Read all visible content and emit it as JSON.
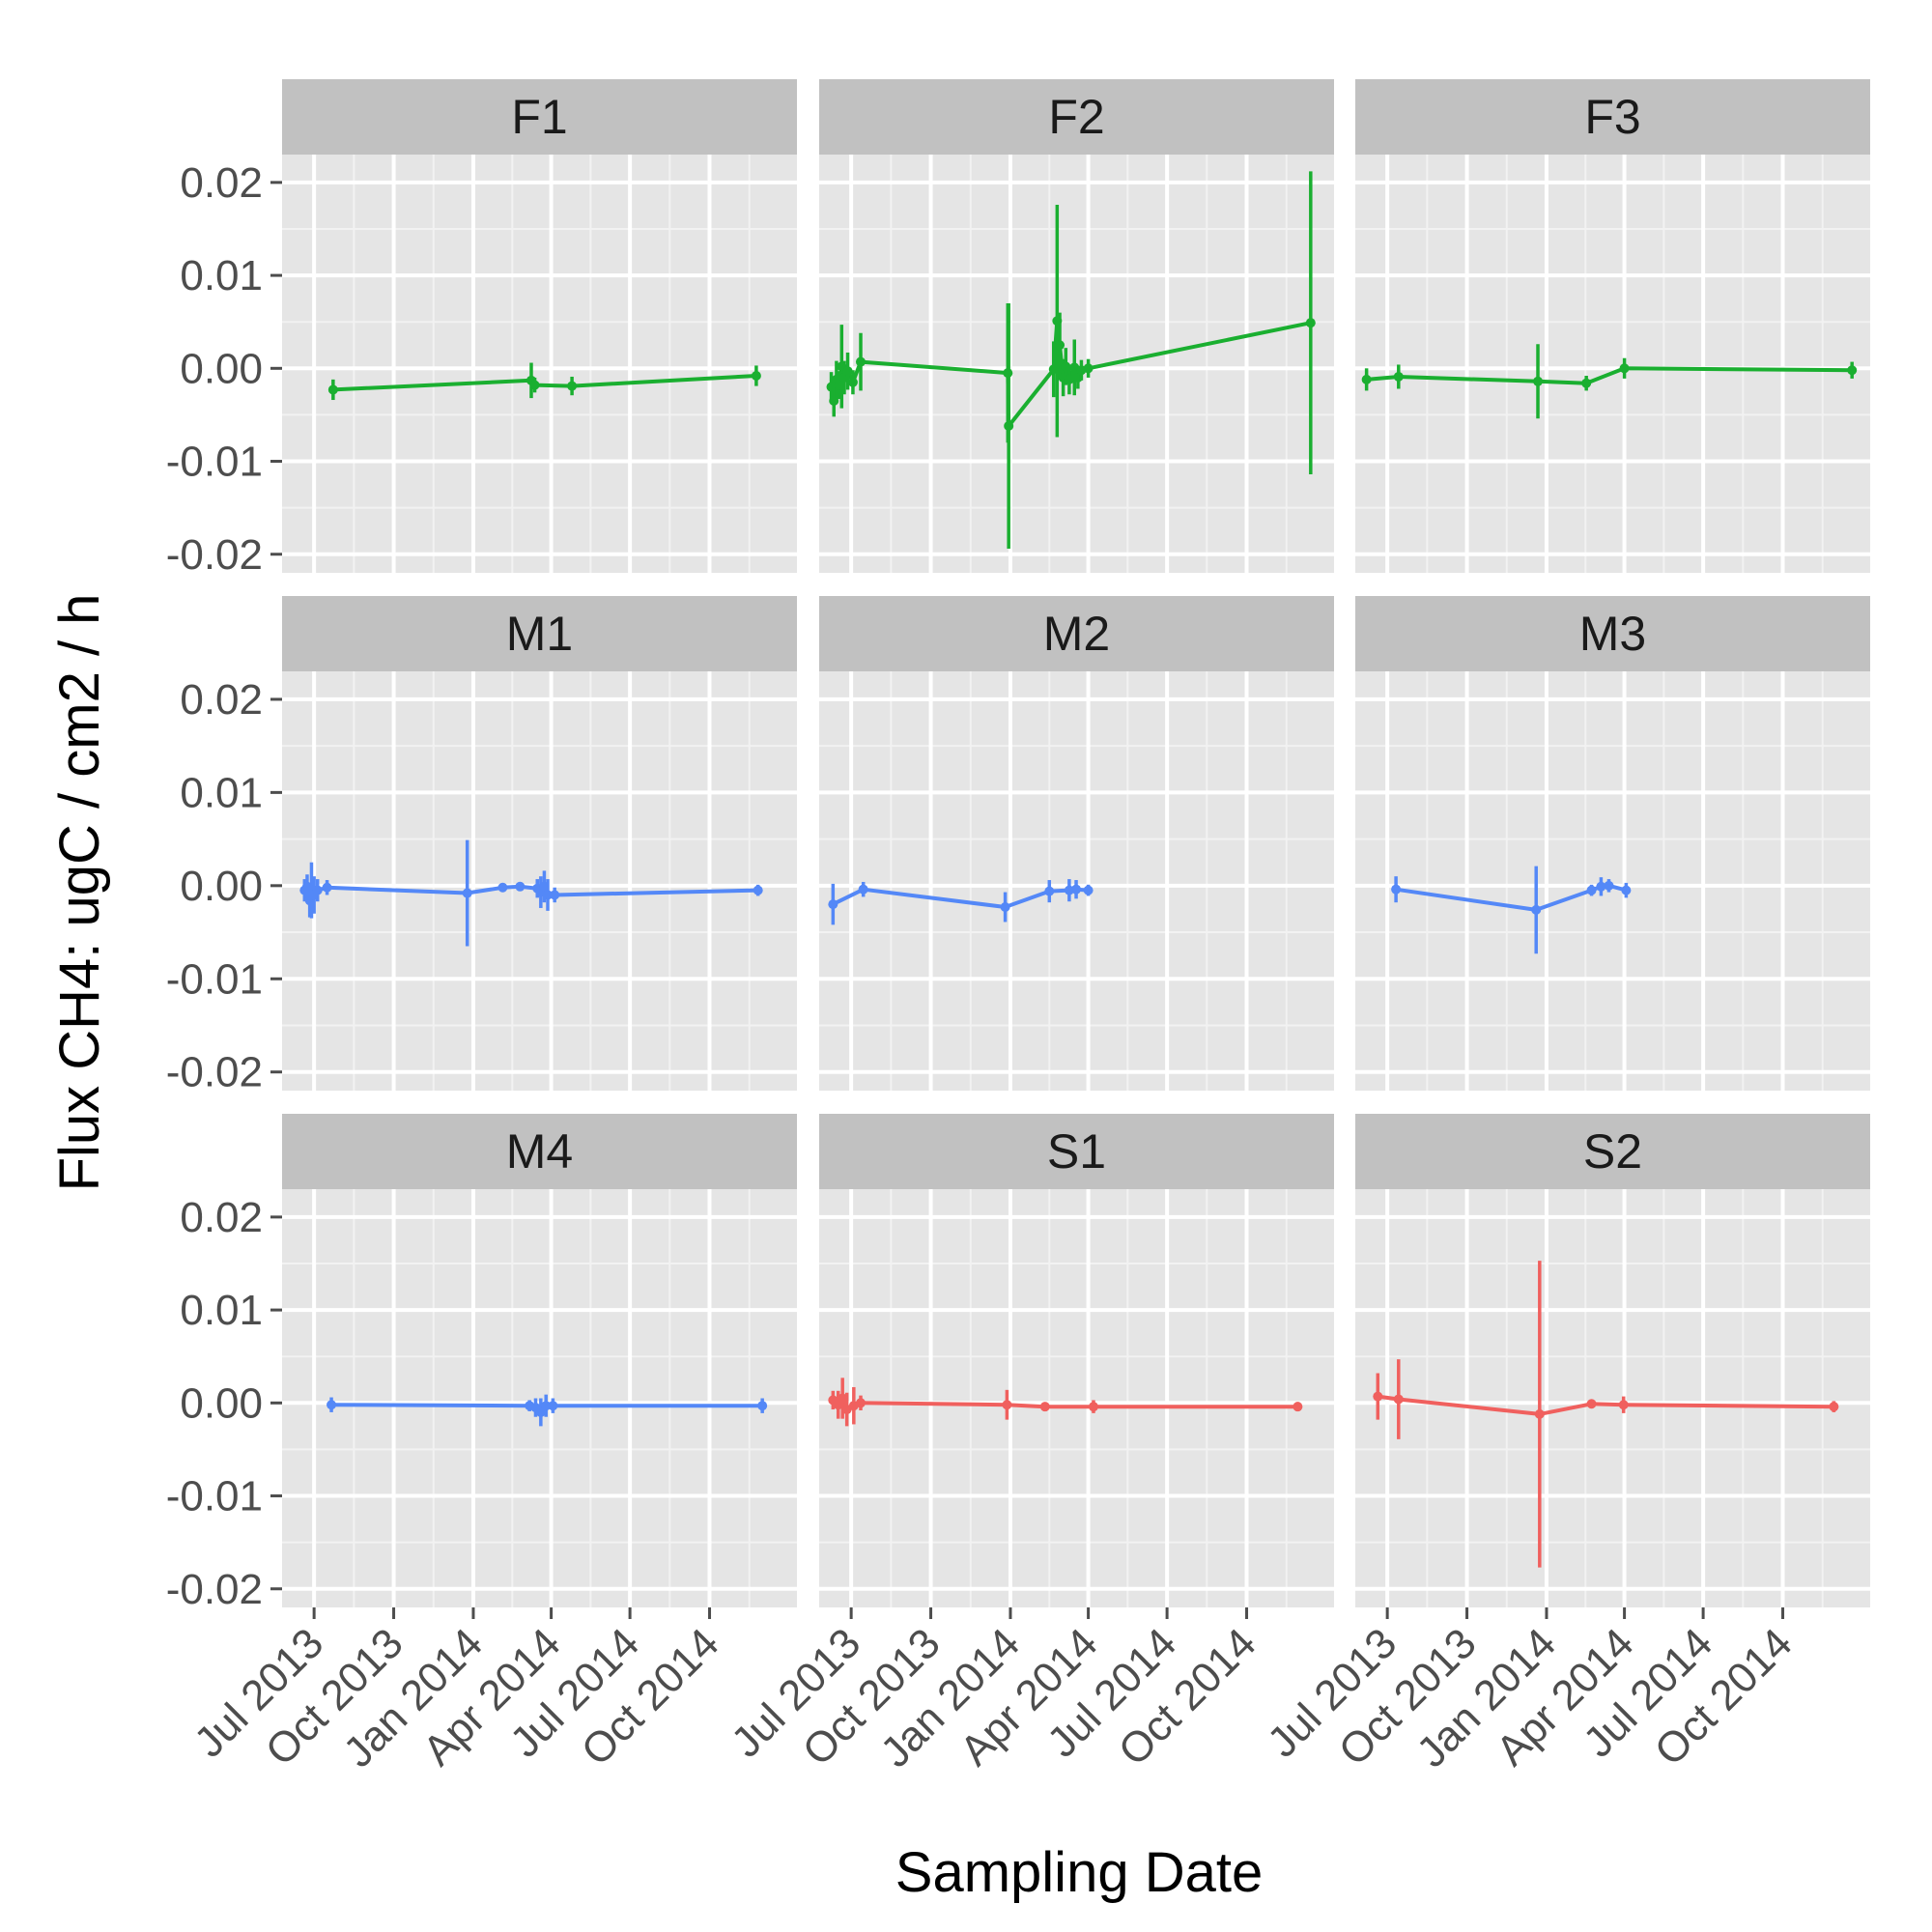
{
  "chart_data": {
    "type": "line",
    "facet_layout": {
      "columns": 3,
      "rows": 3
    },
    "xlabel": "Sampling Date",
    "ylabel": "Flux CH4: ugC / cm2 / h",
    "ylim": [
      -0.022,
      0.023
    ],
    "yticks": [
      -0.02,
      -0.01,
      0.0,
      0.01,
      0.02
    ],
    "ytick_labels": [
      "-0.02",
      "-0.01",
      "0.00",
      "0.01",
      "0.02"
    ],
    "xlim": [
      "2013-05-25",
      "2015-01-10"
    ],
    "xticks": [
      "2013-07-01",
      "2013-10-01",
      "2014-01-01",
      "2014-04-01",
      "2014-07-01",
      "2014-10-01"
    ],
    "xtick_labels": [
      "Jul 2013",
      "Oct 2013",
      "Jan 2014",
      "Apr 2014",
      "Jul 2014",
      "Oct 2014"
    ],
    "grid": true,
    "colors": {
      "F": "#1aaf30",
      "M": "#5488f7",
      "S": "#f0605e"
    },
    "panels": [
      {
        "name": "F1",
        "group": "F",
        "points": [
          {
            "x": "2013-07-23",
            "y": -0.0023,
            "err": 0.0011
          },
          {
            "x": "2014-03-09",
            "y": -0.0013,
            "err": 0.0019
          },
          {
            "x": "2014-03-13",
            "y": -0.0018,
            "err": 0.0008
          },
          {
            "x": "2014-04-25",
            "y": -0.0019,
            "err": 0.001
          },
          {
            "x": "2014-11-24",
            "y": -0.0008,
            "err": 0.0011
          }
        ]
      },
      {
        "name": "F2",
        "group": "F",
        "points": [
          {
            "x": "2013-06-08",
            "y": -0.002,
            "err": 0.0016
          },
          {
            "x": "2013-06-11",
            "y": -0.0035,
            "err": 0.0017
          },
          {
            "x": "2013-06-14",
            "y": -0.0012,
            "err": 0.002
          },
          {
            "x": "2013-06-17",
            "y": -0.0018,
            "err": 0.0015
          },
          {
            "x": "2013-06-20",
            "y": 0.0002,
            "err": 0.0045
          },
          {
            "x": "2013-06-23",
            "y": -0.001,
            "err": 0.0018
          },
          {
            "x": "2013-06-27",
            "y": -0.0003,
            "err": 0.002
          },
          {
            "x": "2013-07-03",
            "y": -0.0015,
            "err": 0.0013
          },
          {
            "x": "2013-07-12",
            "y": 0.0007,
            "err": 0.0031
          },
          {
            "x": "2013-12-29",
            "y": -0.0005,
            "err": 0.0075
          },
          {
            "x": "2013-12-30",
            "y": -0.0062,
            "err": 0.0132
          },
          {
            "x": "2014-02-20",
            "y": -0.0001,
            "err": 0.003
          },
          {
            "x": "2014-02-24",
            "y": 0.0051,
            "err": 0.0125
          },
          {
            "x": "2014-02-27",
            "y": 0.0025,
            "err": 0.0035
          },
          {
            "x": "2014-03-03",
            "y": -0.001,
            "err": 0.002
          },
          {
            "x": "2014-03-06",
            "y": 0.0002,
            "err": 0.002
          },
          {
            "x": "2014-03-10",
            "y": -0.0012,
            "err": 0.0016
          },
          {
            "x": "2014-03-16",
            "y": 0.0001,
            "err": 0.003
          },
          {
            "x": "2014-03-20",
            "y": -0.001,
            "err": 0.0012
          },
          {
            "x": "2014-03-24",
            "y": -0.0002,
            "err": 0.0011
          },
          {
            "x": "2014-04-01",
            "y": 0.0,
            "err": 0.001
          },
          {
            "x": "2014-12-14",
            "y": 0.0049,
            "err": 0.0163
          }
        ]
      },
      {
        "name": "F3",
        "group": "F",
        "points": [
          {
            "x": "2013-06-07",
            "y": -0.0012,
            "err": 0.0012
          },
          {
            "x": "2013-07-14",
            "y": -0.0009,
            "err": 0.0013
          },
          {
            "x": "2013-12-22",
            "y": -0.0014,
            "err": 0.004
          },
          {
            "x": "2014-02-16",
            "y": -0.0016,
            "err": 0.0008
          },
          {
            "x": "2014-04-01",
            "y": 0.0,
            "err": 0.0011
          },
          {
            "x": "2014-12-20",
            "y": -0.0002,
            "err": 0.0009
          }
        ]
      },
      {
        "name": "M1",
        "group": "M",
        "points": [
          {
            "x": "2013-06-20",
            "y": -0.0005,
            "err": 0.0012
          },
          {
            "x": "2013-06-23",
            "y": -0.0001,
            "err": 0.0013
          },
          {
            "x": "2013-06-26",
            "y": -0.0016,
            "err": 0.0018
          },
          {
            "x": "2013-06-28",
            "y": -0.0005,
            "err": 0.003
          },
          {
            "x": "2013-07-01",
            "y": -0.001,
            "err": 0.002
          },
          {
            "x": "2013-07-05",
            "y": -0.0005,
            "err": 0.0012
          },
          {
            "x": "2013-07-16",
            "y": -0.0002,
            "err": 0.0008
          },
          {
            "x": "2013-12-25",
            "y": -0.0008,
            "err": 0.0057
          },
          {
            "x": "2014-02-04",
            "y": -0.0002,
            "err": 0.0004
          },
          {
            "x": "2014-02-24",
            "y": -0.0001,
            "err": 0.0004
          },
          {
            "x": "2014-03-16",
            "y": -0.0003,
            "err": 0.001
          },
          {
            "x": "2014-03-20",
            "y": -0.0007,
            "err": 0.0017
          },
          {
            "x": "2014-03-24",
            "y": -0.0001,
            "err": 0.0017
          },
          {
            "x": "2014-03-28",
            "y": -0.001,
            "err": 0.0017
          },
          {
            "x": "2014-04-05",
            "y": -0.001,
            "err": 0.0008
          },
          {
            "x": "2014-11-26",
            "y": -0.0005,
            "err": 0.0006
          }
        ]
      },
      {
        "name": "M2",
        "group": "M",
        "points": [
          {
            "x": "2013-06-10",
            "y": -0.002,
            "err": 0.0022
          },
          {
            "x": "2013-07-15",
            "y": -0.0004,
            "err": 0.0008
          },
          {
            "x": "2013-12-26",
            "y": -0.0023,
            "err": 0.0016
          },
          {
            "x": "2014-02-15",
            "y": -0.0006,
            "err": 0.0012
          },
          {
            "x": "2014-03-10",
            "y": -0.0005,
            "err": 0.0012
          },
          {
            "x": "2014-03-18",
            "y": -0.0004,
            "err": 0.001
          },
          {
            "x": "2014-04-01",
            "y": -0.0005,
            "err": 0.0006
          }
        ]
      },
      {
        "name": "M3",
        "group": "M",
        "points": [
          {
            "x": "2013-07-11",
            "y": -0.0004,
            "err": 0.0014
          },
          {
            "x": "2013-12-20",
            "y": -0.0026,
            "err": 0.0047
          },
          {
            "x": "2014-02-22",
            "y": -0.0005,
            "err": 0.0006
          },
          {
            "x": "2014-03-05",
            "y": -0.0001,
            "err": 0.001
          },
          {
            "x": "2014-03-14",
            "y": 0.0,
            "err": 0.0007
          },
          {
            "x": "2014-04-03",
            "y": -0.0005,
            "err": 0.0008
          }
        ]
      },
      {
        "name": "M4",
        "group": "M",
        "points": [
          {
            "x": "2013-07-21",
            "y": -0.0002,
            "err": 0.0008
          },
          {
            "x": "2014-03-07",
            "y": -0.0003,
            "err": 0.0006
          },
          {
            "x": "2014-03-14",
            "y": -0.0005,
            "err": 0.001
          },
          {
            "x": "2014-03-20",
            "y": -0.001,
            "err": 0.0015
          },
          {
            "x": "2014-03-26",
            "y": -0.0003,
            "err": 0.0012
          },
          {
            "x": "2014-04-03",
            "y": -0.0003,
            "err": 0.0008
          },
          {
            "x": "2014-12-01",
            "y": -0.0003,
            "err": 0.0008
          }
        ]
      },
      {
        "name": "S1",
        "group": "S",
        "points": [
          {
            "x": "2013-06-10",
            "y": 0.0003,
            "err": 0.001
          },
          {
            "x": "2013-06-16",
            "y": -0.0002,
            "err": 0.0015
          },
          {
            "x": "2013-06-21",
            "y": 0.0005,
            "err": 0.0022
          },
          {
            "x": "2013-06-26",
            "y": -0.0007,
            "err": 0.0018
          },
          {
            "x": "2013-07-04",
            "y": -0.0003,
            "err": 0.002
          },
          {
            "x": "2013-07-12",
            "y": 0.0,
            "err": 0.0008
          },
          {
            "x": "2013-12-28",
            "y": -0.0002,
            "err": 0.0016
          },
          {
            "x": "2014-02-10",
            "y": -0.0004,
            "err": 0.0004
          },
          {
            "x": "2014-04-07",
            "y": -0.0004,
            "err": 0.0007
          },
          {
            "x": "2014-11-29",
            "y": -0.0004,
            "err": 0.0005
          }
        ]
      },
      {
        "name": "S2",
        "group": "S",
        "points": [
          {
            "x": "2013-06-20",
            "y": 0.0007,
            "err": 0.0025
          },
          {
            "x": "2013-07-14",
            "y": 0.0004,
            "err": 0.0043
          },
          {
            "x": "2013-12-24",
            "y": -0.0012,
            "err": 0.0165
          },
          {
            "x": "2014-02-22",
            "y": -0.0001,
            "err": 0.0004
          },
          {
            "x": "2014-03-31",
            "y": -0.0002,
            "err": 0.0009
          },
          {
            "x": "2014-11-29",
            "y": -0.0004,
            "err": 0.0006
          }
        ]
      }
    ]
  }
}
